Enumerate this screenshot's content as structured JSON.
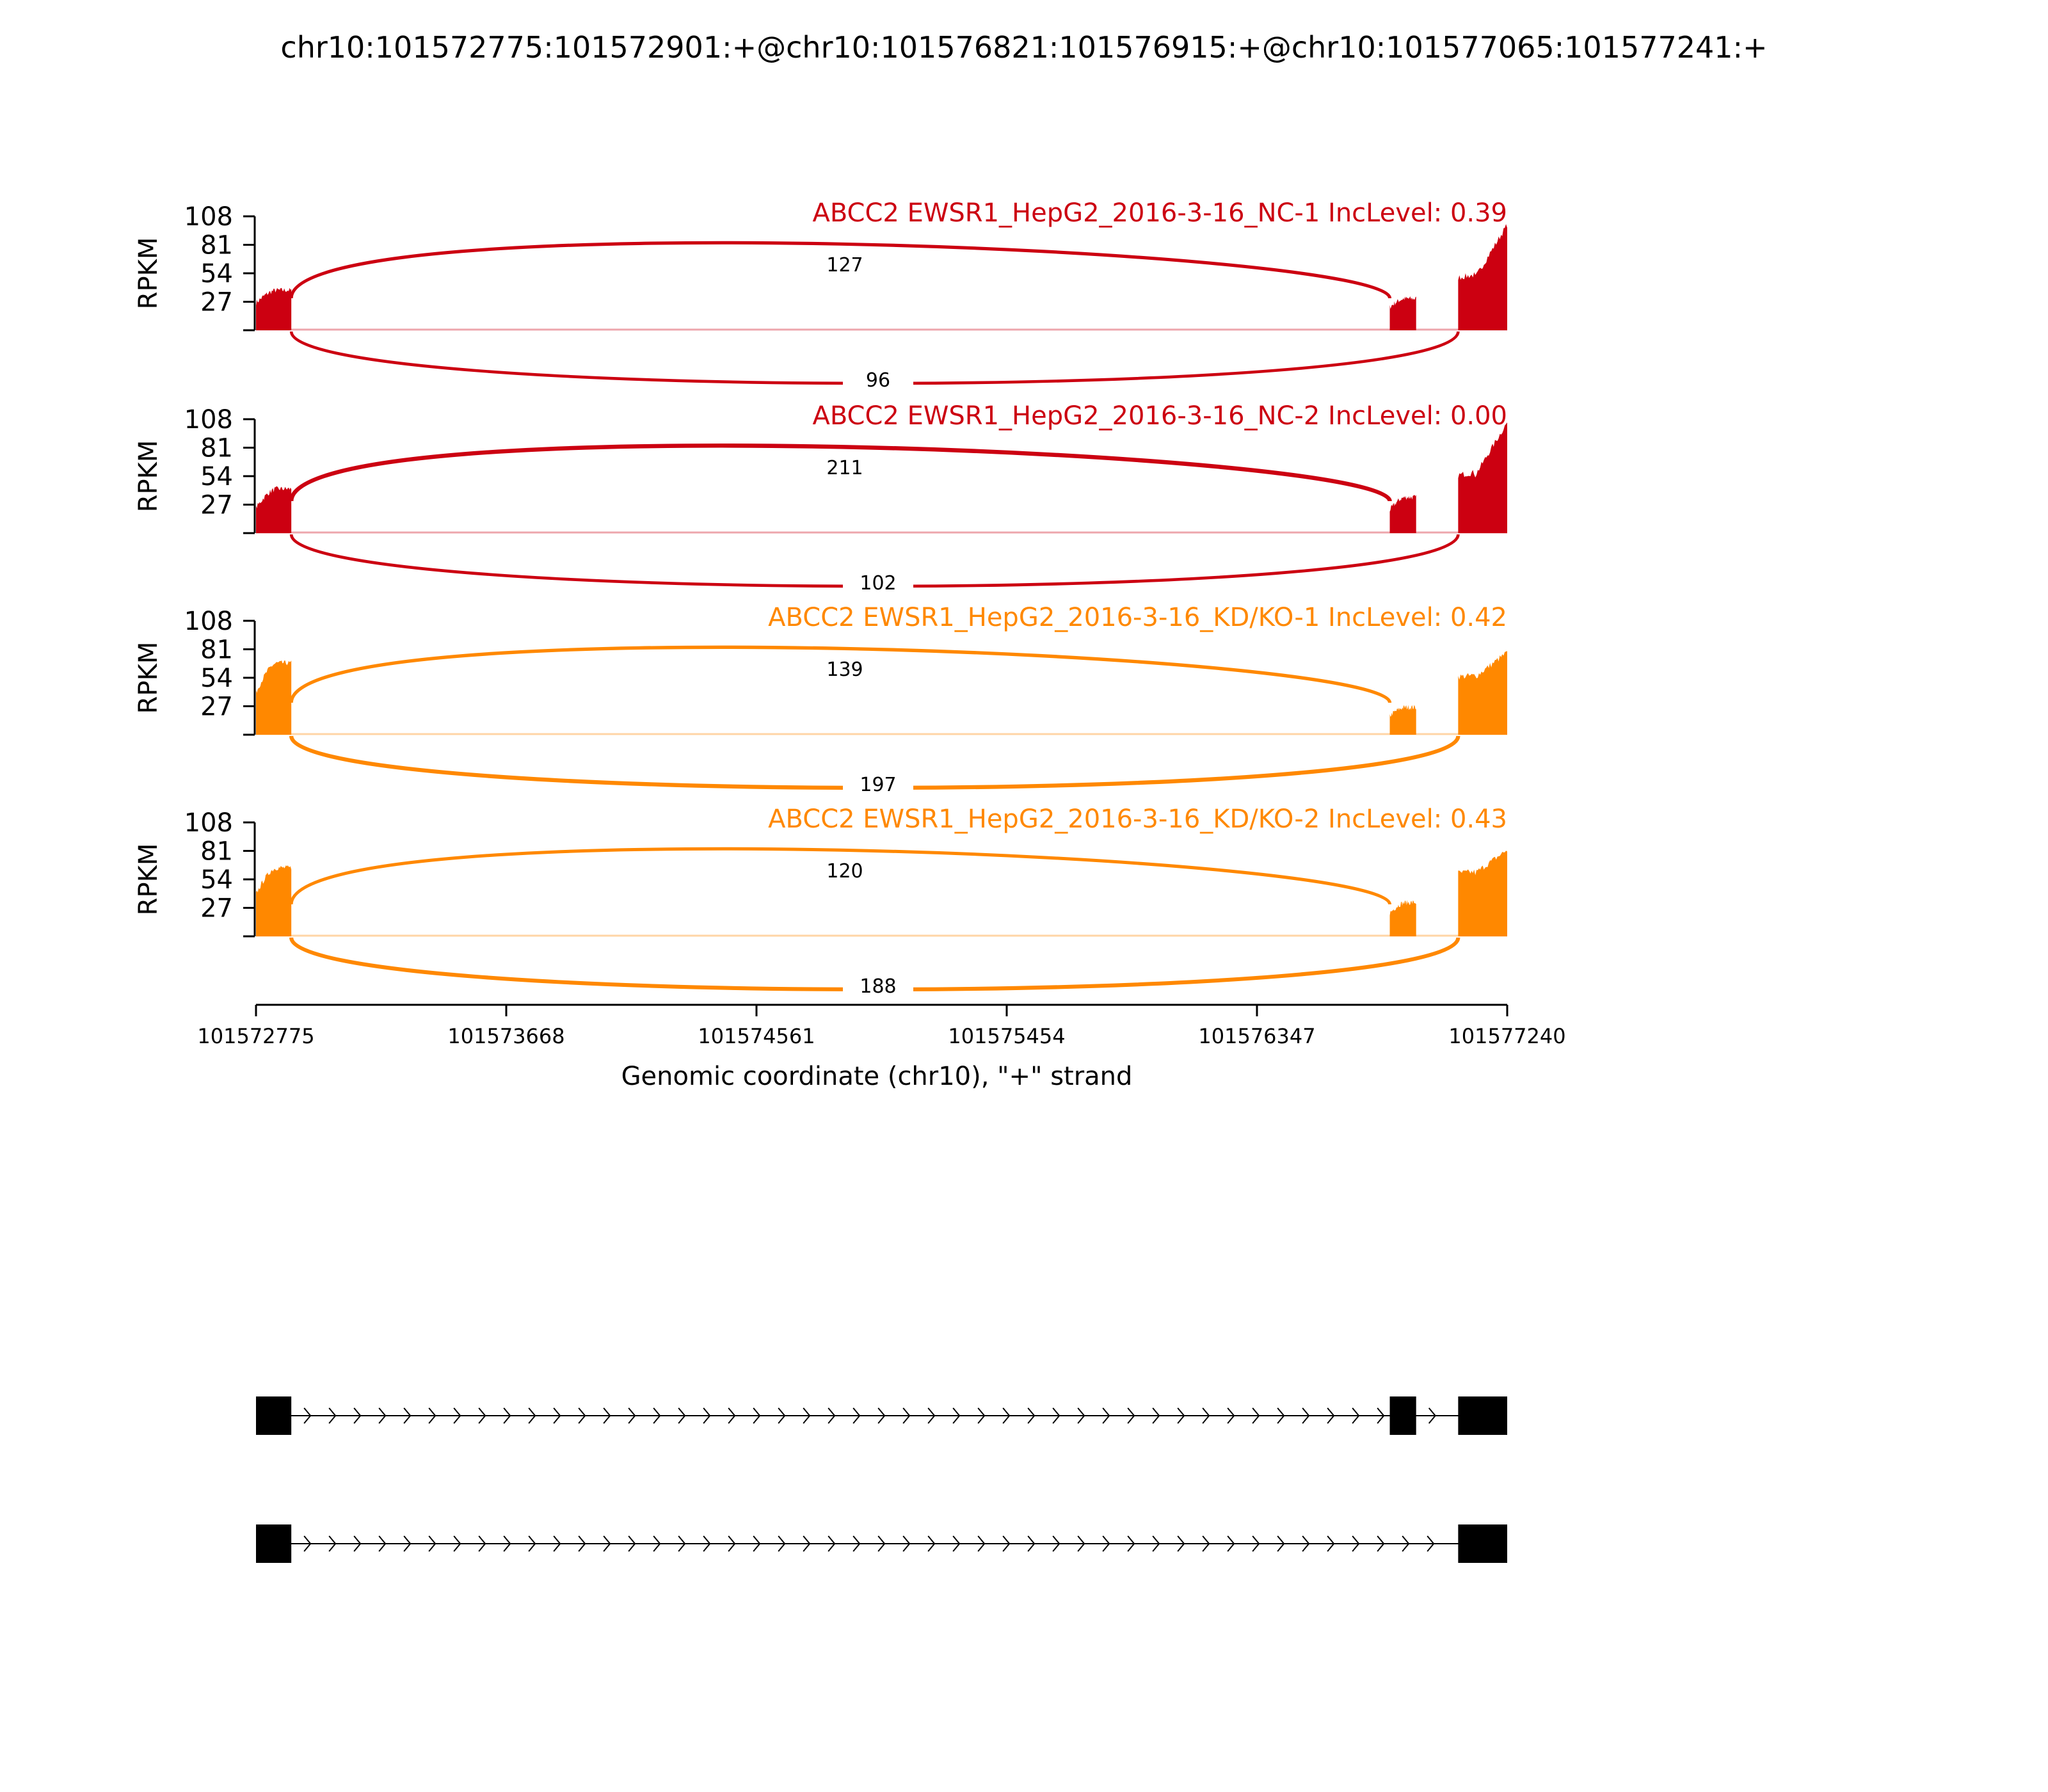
{
  "chart_data": {
    "type": "area",
    "title": "chr10:101572775:101572901:+@chr10:101576821:101576915:+@chr10:101577065:101577241:+",
    "xlabel": "Genomic coordinate (chr10), \"+\" strand",
    "ylabel": "RPKM",
    "xlim": [
      101572775,
      101577240
    ],
    "x_ticks": [
      "101572775",
      "101573668",
      "101574561",
      "101575454",
      "101576347",
      "101577240"
    ],
    "ylim": [
      0,
      108
    ],
    "y_ticks": [
      "27",
      "54",
      "81",
      "108"
    ],
    "exons": [
      {
        "start": 101572775,
        "end": 101572901
      },
      {
        "start": 101576821,
        "end": 101576915
      },
      {
        "start": 101577065,
        "end": 101577240
      }
    ],
    "series": [
      {
        "name": "ABCC2 EWSR1_HepG2_2016-3-16_NC-1 IncLevel: 0.39",
        "color": "#cc0011",
        "coverage": {
          "exon1": [
            26,
            38
          ],
          "exon2": [
            22,
            30
          ],
          "exon3": [
            50,
            100
          ]
        },
        "junctions": [
          {
            "from": 101572901,
            "to": 101576821,
            "reads": "127",
            "side": "above"
          },
          {
            "from": 101572901,
            "to": 101577065,
            "reads": "96",
            "side": "below"
          }
        ]
      },
      {
        "name": "ABCC2 EWSR1_HepG2_2016-3-16_NC-2 IncLevel: 0.00",
        "color": "#cc0011",
        "coverage": {
          "exon1": [
            24,
            42
          ],
          "exon2": [
            22,
            34
          ],
          "exon3": [
            55,
            105
          ]
        },
        "junctions": [
          {
            "from": 101572901,
            "to": 101576821,
            "reads": "211",
            "side": "above"
          },
          {
            "from": 101572901,
            "to": 101577065,
            "reads": "102",
            "side": "below"
          }
        ]
      },
      {
        "name": "ABCC2 EWSR1_HepG2_2016-3-16_KD/KO-1 IncLevel: 0.42",
        "color": "#ff8800",
        "coverage": {
          "exon1": [
            40,
            68
          ],
          "exon2": [
            18,
            26
          ],
          "exon3": [
            55,
            78
          ]
        },
        "junctions": [
          {
            "from": 101572901,
            "to": 101576821,
            "reads": "139",
            "side": "above"
          },
          {
            "from": 101572901,
            "to": 101577065,
            "reads": "197",
            "side": "below"
          }
        ]
      },
      {
        "name": "ABCC2 EWSR1_HepG2_2016-3-16_KD/KO-2 IncLevel: 0.43",
        "color": "#ff8800",
        "coverage": {
          "exon1": [
            40,
            65
          ],
          "exon2": [
            22,
            32
          ],
          "exon3": [
            60,
            82
          ]
        },
        "junctions": [
          {
            "from": 101572901,
            "to": 101576821,
            "reads": "120",
            "side": "above"
          },
          {
            "from": 101572901,
            "to": 101577065,
            "reads": "188",
            "side": "below"
          }
        ]
      }
    ],
    "isoforms": [
      {
        "exons": [
          [
            101572775,
            101572901
          ],
          [
            101576821,
            101576915
          ],
          [
            101577065,
            101577240
          ]
        ]
      },
      {
        "exons": [
          [
            101572775,
            101572901
          ],
          [
            101577065,
            101577240
          ]
        ]
      }
    ]
  }
}
